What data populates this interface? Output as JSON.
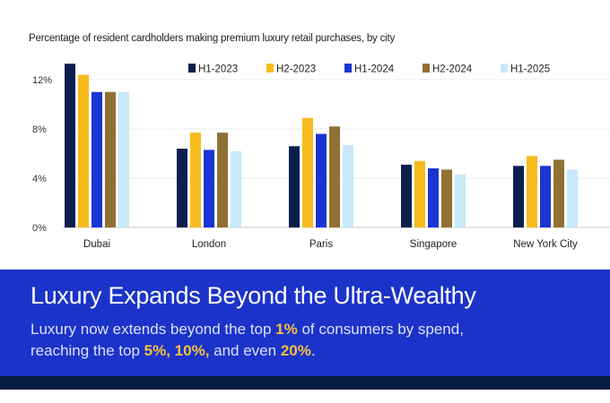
{
  "chart_data": {
    "type": "bar",
    "title": "Percentage of resident cardholders making premium luxury retail purchases, by city",
    "categories": [
      "Dubai",
      "London",
      "Paris",
      "Singapore",
      "New York City"
    ],
    "yticks": [
      "0%",
      "4%",
      "8%",
      "12%"
    ],
    "ylim": [
      0,
      14
    ],
    "grid": true,
    "legend_position": "top",
    "series": [
      {
        "name": "H1-2023",
        "color": "#0b1f4d",
        "values": [
          13.3,
          6.4,
          6.6,
          5.1,
          5.0
        ]
      },
      {
        "name": "H2-2023",
        "color": "#f7bb1d",
        "values": [
          12.4,
          7.7,
          8.9,
          5.4,
          5.8
        ]
      },
      {
        "name": "H1-2024",
        "color": "#1a35d1",
        "values": [
          11.0,
          6.3,
          7.6,
          4.8,
          5.0
        ]
      },
      {
        "name": "H2-2024",
        "color": "#8f7135",
        "values": [
          11.0,
          7.7,
          8.2,
          4.7,
          5.5
        ]
      },
      {
        "name": "H1-2025",
        "color": "#c9e9f9",
        "values": [
          11.0,
          6.2,
          6.7,
          4.3,
          4.7
        ]
      }
    ]
  },
  "banner": {
    "headline": "Luxury Expands Beyond the Ultra-Wealthy",
    "line1_a": "Luxury now extends beyond the top ",
    "line1_b": "1%",
    "line1_c": " of consumers by spend,",
    "line2_a": "reaching the top ",
    "line2_b": "5%, 10%,",
    "line2_c": " and even ",
    "line2_d": "20%",
    "line2_e": ".",
    "background": "#1c33c9",
    "highlight": "#f6c23e"
  }
}
